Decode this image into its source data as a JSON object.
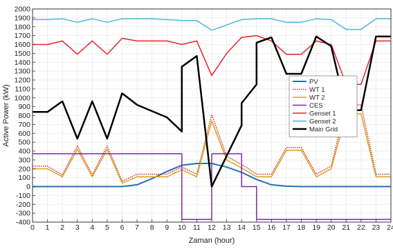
{
  "chart_data": {
    "type": "line",
    "xlabel": "Zaman (hour)",
    "ylabel": "Active Power (kW)",
    "xlim": [
      0,
      24
    ],
    "ylim": [
      -400,
      2000
    ],
    "x_ticks": [
      0,
      1,
      2,
      3,
      4,
      5,
      6,
      7,
      8,
      9,
      10,
      11,
      12,
      13,
      14,
      15,
      16,
      17,
      18,
      19,
      20,
      21,
      22,
      23,
      24
    ],
    "y_ticks": [
      -400,
      -300,
      -200,
      -100,
      0,
      100,
      200,
      300,
      400,
      500,
      600,
      700,
      800,
      900,
      1000,
      1100,
      1200,
      1300,
      1400,
      1500,
      1600,
      1700,
      1800,
      1900,
      2000
    ],
    "grid": true,
    "legend_position": "right",
    "series": [
      {
        "name": "PV",
        "color": "#1f6fbf",
        "dash": "solid",
        "width": 2,
        "points": [
          [
            0,
            0
          ],
          [
            1,
            0
          ],
          [
            2,
            0
          ],
          [
            3,
            0
          ],
          [
            4,
            0
          ],
          [
            5,
            0
          ],
          [
            6,
            0
          ],
          [
            7,
            20
          ],
          [
            8,
            90
          ],
          [
            9,
            170
          ],
          [
            10,
            240
          ],
          [
            11,
            260
          ],
          [
            12,
            260
          ],
          [
            13,
            220
          ],
          [
            14,
            160
          ],
          [
            15,
            80
          ],
          [
            16,
            20
          ],
          [
            17,
            5
          ],
          [
            18,
            0
          ],
          [
            19,
            0
          ],
          [
            20,
            0
          ],
          [
            21,
            0
          ],
          [
            22,
            0
          ],
          [
            23,
            0
          ],
          [
            24,
            0
          ]
        ]
      },
      {
        "name": "WT 1",
        "color": "#cc2a1a",
        "dash": "dotted",
        "width": 1.5,
        "points": [
          [
            0,
            230
          ],
          [
            1,
            230
          ],
          [
            2,
            130
          ],
          [
            3,
            460
          ],
          [
            4,
            130
          ],
          [
            5,
            460
          ],
          [
            6,
            60
          ],
          [
            7,
            140
          ],
          [
            8,
            140
          ],
          [
            9,
            140
          ],
          [
            10,
            220
          ],
          [
            11,
            140
          ],
          [
            12,
            810
          ],
          [
            13,
            340
          ],
          [
            14,
            250
          ],
          [
            15,
            140
          ],
          [
            16,
            140
          ],
          [
            17,
            440
          ],
          [
            18,
            440
          ],
          [
            19,
            140
          ],
          [
            20,
            230
          ],
          [
            21,
            920
          ],
          [
            22,
            920
          ],
          [
            23,
            140
          ],
          [
            24,
            140
          ]
        ]
      },
      {
        "name": "WT 2",
        "color": "#e0a020",
        "dash": "solid",
        "width": 1.5,
        "points": [
          [
            0,
            200
          ],
          [
            1,
            200
          ],
          [
            2,
            110
          ],
          [
            3,
            420
          ],
          [
            4,
            110
          ],
          [
            5,
            420
          ],
          [
            6,
            40
          ],
          [
            7,
            110
          ],
          [
            8,
            110
          ],
          [
            9,
            110
          ],
          [
            10,
            190
          ],
          [
            11,
            110
          ],
          [
            12,
            740
          ],
          [
            13,
            300
          ],
          [
            14,
            210
          ],
          [
            15,
            110
          ],
          [
            16,
            110
          ],
          [
            17,
            410
          ],
          [
            18,
            410
          ],
          [
            19,
            110
          ],
          [
            20,
            200
          ],
          [
            21,
            820
          ],
          [
            22,
            820
          ],
          [
            23,
            110
          ],
          [
            24,
            110
          ]
        ]
      },
      {
        "name": "CES",
        "color": "#7a2aa8",
        "dash": "solid",
        "width": 1.5,
        "points": [
          [
            0,
            370
          ],
          [
            10,
            370
          ],
          [
            10,
            -370
          ],
          [
            12,
            -370
          ],
          [
            12,
            370
          ],
          [
            14,
            370
          ],
          [
            14,
            0
          ],
          [
            15,
            0
          ],
          [
            15,
            -370
          ],
          [
            24,
            -370
          ]
        ]
      },
      {
        "name": "Genset 1",
        "color": "#e8232a",
        "dash": "solid",
        "width": 1.5,
        "points": [
          [
            0,
            1600
          ],
          [
            1,
            1600
          ],
          [
            2,
            1640
          ],
          [
            3,
            1490
          ],
          [
            4,
            1640
          ],
          [
            5,
            1490
          ],
          [
            6,
            1670
          ],
          [
            7,
            1640
          ],
          [
            8,
            1640
          ],
          [
            9,
            1640
          ],
          [
            10,
            1600
          ],
          [
            11,
            1640
          ],
          [
            12,
            1250
          ],
          [
            13,
            1500
          ],
          [
            14,
            1680
          ],
          [
            15,
            1700
          ],
          [
            16,
            1640
          ],
          [
            17,
            1490
          ],
          [
            18,
            1490
          ],
          [
            19,
            1640
          ],
          [
            20,
            1600
          ],
          [
            21,
            1150
          ],
          [
            22,
            1150
          ],
          [
            23,
            1640
          ],
          [
            24,
            1640
          ]
        ]
      },
      {
        "name": "Genset 2",
        "color": "#4ab4e6",
        "dash": "solid",
        "width": 1.5,
        "points": [
          [
            0,
            1880
          ],
          [
            1,
            1880
          ],
          [
            2,
            1890
          ],
          [
            3,
            1850
          ],
          [
            4,
            1890
          ],
          [
            5,
            1850
          ],
          [
            6,
            1890
          ],
          [
            7,
            1890
          ],
          [
            8,
            1890
          ],
          [
            9,
            1880
          ],
          [
            10,
            1870
          ],
          [
            11,
            1870
          ],
          [
            12,
            1760
          ],
          [
            13,
            1820
          ],
          [
            14,
            1880
          ],
          [
            15,
            1890
          ],
          [
            16,
            1890
          ],
          [
            17,
            1850
          ],
          [
            18,
            1850
          ],
          [
            19,
            1890
          ],
          [
            20,
            1880
          ],
          [
            21,
            1770
          ],
          [
            22,
            1770
          ],
          [
            23,
            1890
          ],
          [
            24,
            1890
          ]
        ]
      },
      {
        "name": "Main Grid",
        "color": "#000000",
        "dash": "solid",
        "width": 2.5,
        "points": [
          [
            0,
            840
          ],
          [
            1,
            840
          ],
          [
            2,
            960
          ],
          [
            3,
            540
          ],
          [
            4,
            960
          ],
          [
            5,
            540
          ],
          [
            6,
            1050
          ],
          [
            7,
            920
          ],
          [
            8,
            850
          ],
          [
            9,
            780
          ],
          [
            10,
            620
          ],
          [
            10,
            1350
          ],
          [
            11,
            1470
          ],
          [
            12,
            0
          ],
          [
            14,
            690
          ],
          [
            14,
            940
          ],
          [
            15,
            1150
          ],
          [
            15,
            1620
          ],
          [
            16,
            1680
          ],
          [
            17,
            1270
          ],
          [
            18,
            1270
          ],
          [
            19,
            1690
          ],
          [
            20,
            1580
          ],
          [
            21,
            860
          ],
          [
            22,
            860
          ],
          [
            23,
            1690
          ],
          [
            24,
            1690
          ]
        ]
      }
    ]
  }
}
